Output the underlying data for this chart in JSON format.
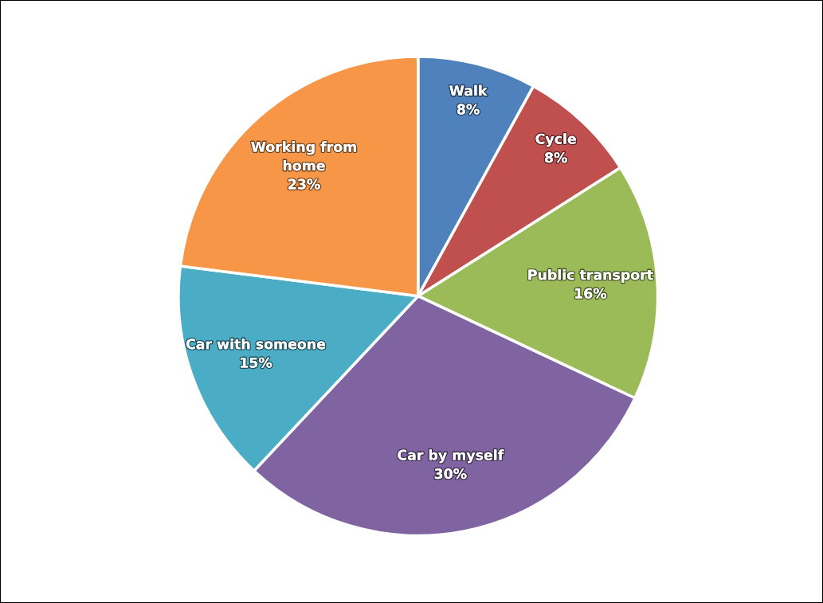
{
  "chart_data": {
    "type": "pie",
    "categories": [
      "Walk",
      "Cycle",
      "Public transport",
      "Car by myself",
      "Car with someone",
      "Working from\nhome"
    ],
    "values": [
      8,
      8,
      16,
      30,
      15,
      23
    ],
    "colors": [
      "#4f81bd",
      "#c0504d",
      "#9bbb59",
      "#8064a2",
      "#4bacc6",
      "#f79646"
    ],
    "value_labels": [
      "8%",
      "8%",
      "16%",
      "30%",
      "15%",
      "23%"
    ]
  }
}
